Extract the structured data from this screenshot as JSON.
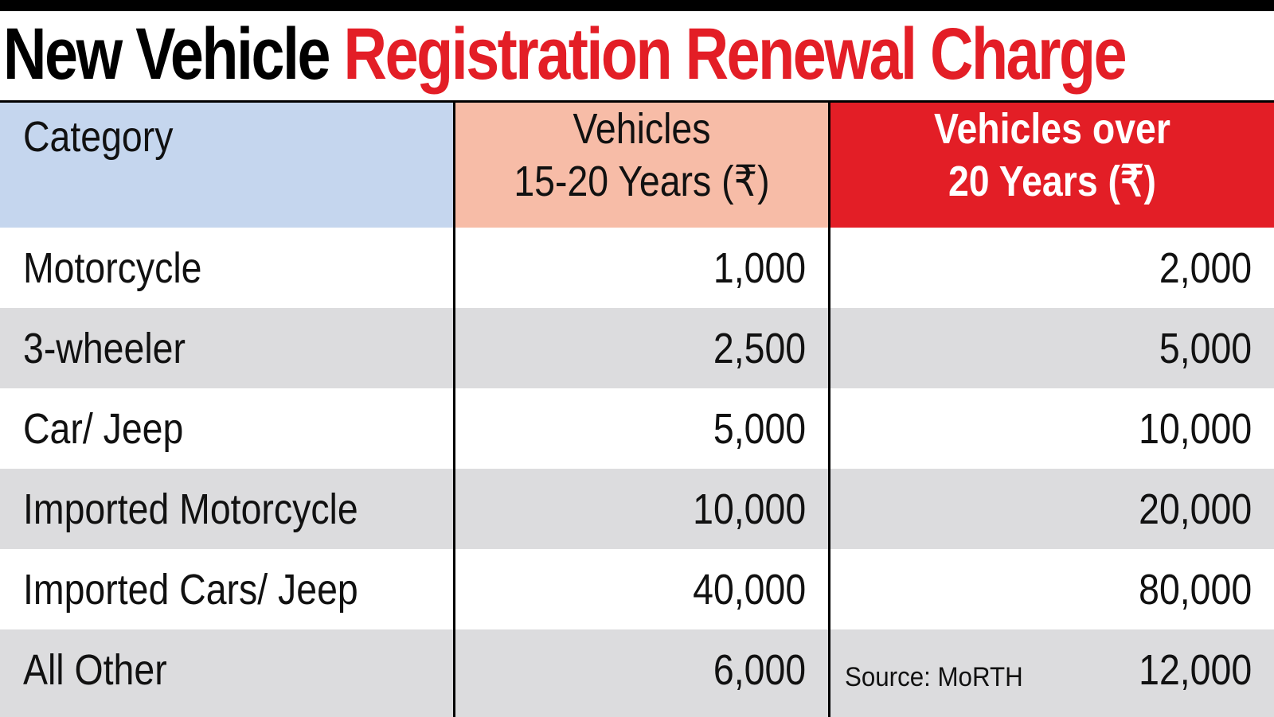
{
  "title": {
    "part1": "New Vehicle",
    "part2": "Registration Renewal Charge"
  },
  "colors": {
    "title_red": "#e31e26",
    "header_category": "#c5d6ee",
    "header_15_20": "#f7bca7",
    "header_over_20": "#e31e26",
    "row_alt": "#dcdcde"
  },
  "chart_data": {
    "type": "table",
    "title": "New Vehicle Registration Renewal Charge",
    "columns": [
      "Category",
      "Vehicles 15-20 Years (₹)",
      "Vehicles over 20 Years (₹)"
    ],
    "header": {
      "col0": "Category",
      "col1_line1": "Vehicles",
      "col1_line2": "15-20 Years (₹)",
      "col2_line1": "Vehicles over",
      "col2_line2": "20 Years (₹)"
    },
    "rows": [
      {
        "category": "Motorcycle",
        "y15_20": "1,000",
        "over20": "2,000"
      },
      {
        "category": "3-wheeler",
        "y15_20": "2,500",
        "over20": "5,000"
      },
      {
        "category": "Car/ Jeep",
        "y15_20": "5,000",
        "over20": "10,000"
      },
      {
        "category": "Imported Motorcycle",
        "y15_20": "10,000",
        "over20": "20,000"
      },
      {
        "category": "Imported Cars/ Jeep",
        "y15_20": "40,000",
        "over20": "80,000"
      },
      {
        "category": "All Other",
        "y15_20": "6,000",
        "over20": "12,000"
      }
    ],
    "source": "Source: MoRTH"
  }
}
